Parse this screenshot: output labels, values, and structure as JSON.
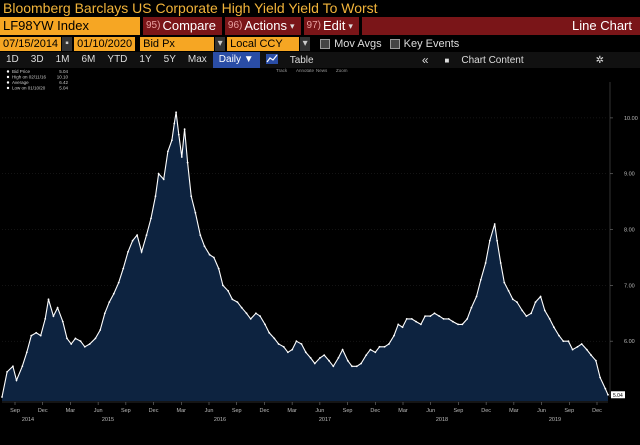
{
  "window_title": "Bloomberg Barclays US Corporate High Yield Yield To Worst",
  "toolbar": {
    "ticker": "LF98YW Index",
    "compare_num": "95)",
    "compare_label": "Compare",
    "actions_num": "96)",
    "actions_label": "Actions",
    "edit_num": "97)",
    "edit_label": "Edit",
    "chart_type": "Line Chart",
    "caret": "▾"
  },
  "settings": {
    "start_date": "07/15/2014",
    "end_date": "01/10/2020",
    "field": "Bid Px",
    "currency": "Local CCY",
    "mov_avgs": "Mov Avgs",
    "key_events": "Key Events",
    "dropdown_glyph": "▾",
    "menu_glyph": "▪"
  },
  "periods": {
    "items": [
      "1D",
      "3D",
      "1M",
      "6M",
      "YTD",
      "1Y",
      "5Y",
      "Max"
    ],
    "selected": "Daily ▼",
    "table_label": "Table",
    "nav_arrow": "«",
    "chart_content": "Chart Content",
    "gear_glyph": "✲"
  },
  "chart_tools": [
    "Track",
    "Annotate",
    "News",
    "Zoom"
  ],
  "legend": [
    {
      "label": "Bid Price",
      "value": "5.04"
    },
    {
      "label": "High on 02/11/16",
      "value": "10.10"
    },
    {
      "label": "Average",
      "value": "6.42"
    },
    {
      "label": "Low on 01/10/20",
      "value": "5.04"
    }
  ],
  "colors": {
    "area": "#0d2340",
    "line": "#ffffff",
    "accent": "#f6a623",
    "button_red": "#7a1518",
    "last_value_bg": "#ffffff"
  },
  "chart_data": {
    "type": "area",
    "ylim": [
      5.0,
      10.5
    ],
    "yticks": [
      "6.00",
      "7.00",
      "8.00",
      "9.00",
      "10.00"
    ],
    "last_value": "5.04",
    "x_month_labels": [
      "Sep",
      "Dec",
      "Mar",
      "Jun",
      "Sep",
      "Dec",
      "Mar",
      "Jun",
      "Sep",
      "Dec",
      "Mar",
      "Jun",
      "Sep",
      "Dec",
      "Mar",
      "Jun",
      "Sep",
      "Dec",
      "Mar",
      "Jun",
      "Sep",
      "Dec"
    ],
    "x_year_labels": [
      "2014",
      "2015",
      "2016",
      "2017",
      "2018",
      "2019"
    ],
    "series": [
      {
        "values": [
          [
            "2014-07-15",
            5.0
          ],
          [
            "2014-08-01",
            5.45
          ],
          [
            "2014-08-20",
            5.55
          ],
          [
            "2014-09-01",
            5.3
          ],
          [
            "2014-09-20",
            5.55
          ],
          [
            "2014-10-05",
            5.8
          ],
          [
            "2014-10-20",
            6.1
          ],
          [
            "2014-11-05",
            6.15
          ],
          [
            "2014-11-20",
            6.1
          ],
          [
            "2014-12-05",
            6.4
          ],
          [
            "2014-12-16",
            6.75
          ],
          [
            "2015-01-01",
            6.45
          ],
          [
            "2015-01-15",
            6.6
          ],
          [
            "2015-02-01",
            6.35
          ],
          [
            "2015-02-15",
            6.05
          ],
          [
            "2015-03-01",
            5.95
          ],
          [
            "2015-03-15",
            6.05
          ],
          [
            "2015-04-01",
            6.0
          ],
          [
            "2015-04-15",
            5.9
          ],
          [
            "2015-05-01",
            5.95
          ],
          [
            "2015-05-20",
            6.05
          ],
          [
            "2015-06-05",
            6.2
          ],
          [
            "2015-06-20",
            6.5
          ],
          [
            "2015-07-05",
            6.7
          ],
          [
            "2015-07-20",
            6.85
          ],
          [
            "2015-08-05",
            7.05
          ],
          [
            "2015-08-20",
            7.3
          ],
          [
            "2015-09-05",
            7.6
          ],
          [
            "2015-09-20",
            7.8
          ],
          [
            "2015-10-05",
            7.9
          ],
          [
            "2015-10-20",
            7.6
          ],
          [
            "2015-11-05",
            7.9
          ],
          [
            "2015-11-20",
            8.2
          ],
          [
            "2015-12-05",
            8.6
          ],
          [
            "2015-12-15",
            9.0
          ],
          [
            "2016-01-01",
            8.9
          ],
          [
            "2016-01-15",
            9.4
          ],
          [
            "2016-01-28",
            9.6
          ],
          [
            "2016-02-05",
            9.9
          ],
          [
            "2016-02-11",
            10.1
          ],
          [
            "2016-02-20",
            9.7
          ],
          [
            "2016-03-01",
            9.3
          ],
          [
            "2016-03-10",
            9.8
          ],
          [
            "2016-03-20",
            9.2
          ],
          [
            "2016-04-01",
            8.6
          ],
          [
            "2016-04-15",
            8.3
          ],
          [
            "2016-05-01",
            7.9
          ],
          [
            "2016-05-15",
            7.7
          ],
          [
            "2016-06-01",
            7.55
          ],
          [
            "2016-06-15",
            7.5
          ],
          [
            "2016-07-01",
            7.3
          ],
          [
            "2016-07-15",
            7.0
          ],
          [
            "2016-08-01",
            6.9
          ],
          [
            "2016-08-15",
            6.75
          ],
          [
            "2016-09-01",
            6.7
          ],
          [
            "2016-09-15",
            6.6
          ],
          [
            "2016-10-01",
            6.5
          ],
          [
            "2016-10-15",
            6.4
          ],
          [
            "2016-11-01",
            6.5
          ],
          [
            "2016-11-15",
            6.45
          ],
          [
            "2016-12-01",
            6.3
          ],
          [
            "2016-12-15",
            6.15
          ],
          [
            "2017-01-01",
            6.05
          ],
          [
            "2017-01-15",
            5.95
          ],
          [
            "2017-02-01",
            5.9
          ],
          [
            "2017-02-15",
            5.8
          ],
          [
            "2017-03-01",
            5.85
          ],
          [
            "2017-03-15",
            6.0
          ],
          [
            "2017-04-01",
            5.95
          ],
          [
            "2017-04-15",
            5.8
          ],
          [
            "2017-05-01",
            5.7
          ],
          [
            "2017-05-15",
            5.6
          ],
          [
            "2017-06-01",
            5.7
          ],
          [
            "2017-06-15",
            5.75
          ],
          [
            "2017-07-01",
            5.65
          ],
          [
            "2017-07-15",
            5.55
          ],
          [
            "2017-08-01",
            5.7
          ],
          [
            "2017-08-15",
            5.85
          ],
          [
            "2017-09-01",
            5.65
          ],
          [
            "2017-09-15",
            5.55
          ],
          [
            "2017-10-01",
            5.55
          ],
          [
            "2017-10-15",
            5.6
          ],
          [
            "2017-11-01",
            5.75
          ],
          [
            "2017-11-15",
            5.85
          ],
          [
            "2017-12-01",
            5.8
          ],
          [
            "2017-12-15",
            5.9
          ],
          [
            "2018-01-01",
            5.9
          ],
          [
            "2018-01-15",
            5.95
          ],
          [
            "2018-02-01",
            6.1
          ],
          [
            "2018-02-15",
            6.3
          ],
          [
            "2018-03-01",
            6.25
          ],
          [
            "2018-03-15",
            6.4
          ],
          [
            "2018-04-01",
            6.4
          ],
          [
            "2018-04-15",
            6.35
          ],
          [
            "2018-05-01",
            6.3
          ],
          [
            "2018-05-15",
            6.45
          ],
          [
            "2018-06-01",
            6.45
          ],
          [
            "2018-06-15",
            6.5
          ],
          [
            "2018-07-01",
            6.45
          ],
          [
            "2018-07-15",
            6.4
          ],
          [
            "2018-08-01",
            6.4
          ],
          [
            "2018-08-15",
            6.35
          ],
          [
            "2018-09-01",
            6.3
          ],
          [
            "2018-09-15",
            6.3
          ],
          [
            "2018-10-01",
            6.4
          ],
          [
            "2018-10-15",
            6.6
          ],
          [
            "2018-11-01",
            6.8
          ],
          [
            "2018-11-15",
            7.1
          ],
          [
            "2018-12-01",
            7.4
          ],
          [
            "2018-12-15",
            7.8
          ],
          [
            "2018-12-31",
            8.1
          ],
          [
            "2019-01-08",
            7.8
          ],
          [
            "2019-01-20",
            7.4
          ],
          [
            "2019-02-01",
            7.05
          ],
          [
            "2019-02-15",
            6.9
          ],
          [
            "2019-03-01",
            6.75
          ],
          [
            "2019-03-15",
            6.7
          ],
          [
            "2019-04-01",
            6.55
          ],
          [
            "2019-04-15",
            6.45
          ],
          [
            "2019-05-01",
            6.5
          ],
          [
            "2019-05-15",
            6.7
          ],
          [
            "2019-06-01",
            6.8
          ],
          [
            "2019-06-15",
            6.55
          ],
          [
            "2019-07-01",
            6.4
          ],
          [
            "2019-07-15",
            6.25
          ],
          [
            "2019-08-01",
            6.1
          ],
          [
            "2019-08-15",
            6.0
          ],
          [
            "2019-09-01",
            6.0
          ],
          [
            "2019-09-15",
            5.85
          ],
          [
            "2019-10-01",
            5.9
          ],
          [
            "2019-10-15",
            5.95
          ],
          [
            "2019-11-01",
            5.85
          ],
          [
            "2019-11-15",
            5.75
          ],
          [
            "2019-12-01",
            5.65
          ],
          [
            "2019-12-15",
            5.35
          ],
          [
            "2020-01-01",
            5.15
          ],
          [
            "2020-01-10",
            5.04
          ]
        ]
      }
    ]
  }
}
